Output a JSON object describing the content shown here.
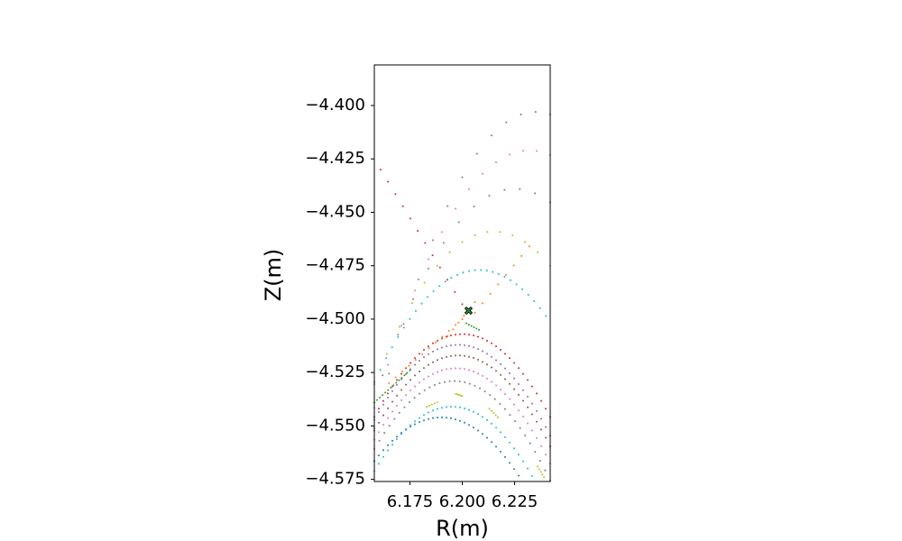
{
  "chart_data": {
    "type": "scatter",
    "title": "",
    "xlabel": "R(m)",
    "ylabel": "Z(m)",
    "xlim": [
      6.158,
      6.242
    ],
    "ylim": [
      -4.576,
      -4.381
    ],
    "xticks": [
      6.175,
      6.2,
      6.225
    ],
    "xtick_labels": [
      "6.175",
      "6.200",
      "6.225"
    ],
    "yticks": [
      -4.4,
      -4.425,
      -4.45,
      -4.475,
      -4.5,
      -4.525,
      -4.55,
      -4.575
    ],
    "ytick_labels": [
      "−4.400",
      "−4.425",
      "−4.450",
      "−4.475",
      "−4.500",
      "−4.525",
      "−4.550",
      "−4.575"
    ],
    "grid": false,
    "legend": "none",
    "x_point": {
      "R": 6.203,
      "Z": -4.496,
      "marker": "x",
      "color": "#2ca02c"
    },
    "series": [
      {
        "color": "#7f7f7f",
        "kind": "parabola",
        "vertex": [
          6.18,
          -4.381
        ],
        "curvature": -1.5,
        "xrange": [
          6.158,
          6.242
        ],
        "n": 14
      },
      {
        "color": "#7f7f7f",
        "kind": "parabola",
        "vertex": [
          6.235,
          -4.403
        ],
        "curvature": 25,
        "xrange": [
          6.158,
          6.242
        ],
        "n": 13
      },
      {
        "color": "#e377c2",
        "kind": "parabola",
        "vertex": [
          6.232,
          -4.421
        ],
        "curvature": 22,
        "xrange": [
          6.158,
          6.242
        ],
        "n": 14
      },
      {
        "color": "#7f7f7f",
        "kind": "parabola",
        "vertex": [
          6.225,
          -4.439
        ],
        "curvature": 22,
        "xrange": [
          6.162,
          6.242
        ],
        "n": 12
      },
      {
        "color": "#bcbd22",
        "kind": "parabola",
        "vertex": [
          6.215,
          -4.459
        ],
        "curvature": 22,
        "xrange": [
          6.158,
          6.242
        ],
        "n": 15
      },
      {
        "color": "#17becf",
        "kind": "parabola",
        "vertex": [
          6.208,
          -4.477
        ],
        "curvature": 21,
        "xrange": [
          6.158,
          6.24
        ],
        "n": 30
      },
      {
        "color": "#d62728",
        "kind": "segment",
        "from": [
          6.161,
          -4.43
        ],
        "to": [
          6.2,
          -4.493
        ],
        "n": 12
      },
      {
        "color": "#ff7f0e",
        "kind": "segment",
        "from": [
          6.193,
          -4.508
        ],
        "to": [
          6.206,
          -4.492
        ],
        "n": 6
      },
      {
        "color": "#ff7f0e",
        "kind": "segment",
        "from": [
          6.232,
          -4.466
        ],
        "to": [
          6.206,
          -4.497
        ],
        "n": 8
      },
      {
        "color": "#ff7f0e",
        "kind": "segment",
        "from": [
          6.165,
          -4.53
        ],
        "to": [
          6.2,
          -4.5
        ],
        "n": 12
      },
      {
        "color": "#2ca02c",
        "kind": "segment",
        "from": [
          6.202,
          -4.502
        ],
        "to": [
          6.208,
          -4.505
        ],
        "n": 6
      },
      {
        "color": "#d62728",
        "kind": "parabola",
        "vertex": [
          6.2,
          -4.507
        ],
        "curvature": 22,
        "xrange": [
          6.158,
          6.242
        ],
        "n": 40
      },
      {
        "color": "#9467bd",
        "kind": "parabola",
        "vertex": [
          6.198,
          -4.512
        ],
        "curvature": 22,
        "xrange": [
          6.158,
          6.242
        ],
        "n": 40
      },
      {
        "color": "#8c564b",
        "kind": "parabola",
        "vertex": [
          6.198,
          -4.517
        ],
        "curvature": 22,
        "xrange": [
          6.158,
          6.242
        ],
        "n": 40
      },
      {
        "color": "#e377c2",
        "kind": "parabola",
        "vertex": [
          6.197,
          -4.523
        ],
        "curvature": 22,
        "xrange": [
          6.158,
          6.242
        ],
        "n": 40
      },
      {
        "color": "#7f7f7f",
        "kind": "parabola",
        "vertex": [
          6.196,
          -4.529
        ],
        "curvature": 22,
        "xrange": [
          6.158,
          6.242
        ],
        "n": 36
      },
      {
        "color": "#2ca02c",
        "kind": "segment",
        "from": [
          6.158,
          -4.539
        ],
        "to": [
          6.175,
          -4.524
        ],
        "n": 14
      },
      {
        "color": "#bcbd22",
        "kind": "segment",
        "from": [
          6.183,
          -4.541
        ],
        "to": [
          6.188,
          -4.539
        ],
        "n": 5
      },
      {
        "color": "#bcbd22",
        "kind": "segment",
        "from": [
          6.197,
          -4.535
        ],
        "to": [
          6.2,
          -4.536
        ],
        "n": 5
      },
      {
        "color": "#bcbd22",
        "kind": "segment",
        "from": [
          6.213,
          -4.542
        ],
        "to": [
          6.217,
          -4.546
        ],
        "n": 5
      },
      {
        "color": "#bcbd22",
        "kind": "segment",
        "from": [
          6.236,
          -4.569
        ],
        "to": [
          6.239,
          -4.574
        ],
        "n": 5
      },
      {
        "color": "#17becf",
        "kind": "parabola",
        "vertex": [
          6.195,
          -4.541
        ],
        "curvature": 22,
        "xrange": [
          6.158,
          6.242
        ],
        "n": 40
      },
      {
        "color": "#1f77b4",
        "kind": "parabola",
        "vertex": [
          6.19,
          -4.546
        ],
        "curvature": 20,
        "xrange": [
          6.158,
          6.242
        ],
        "n": 40
      }
    ]
  }
}
